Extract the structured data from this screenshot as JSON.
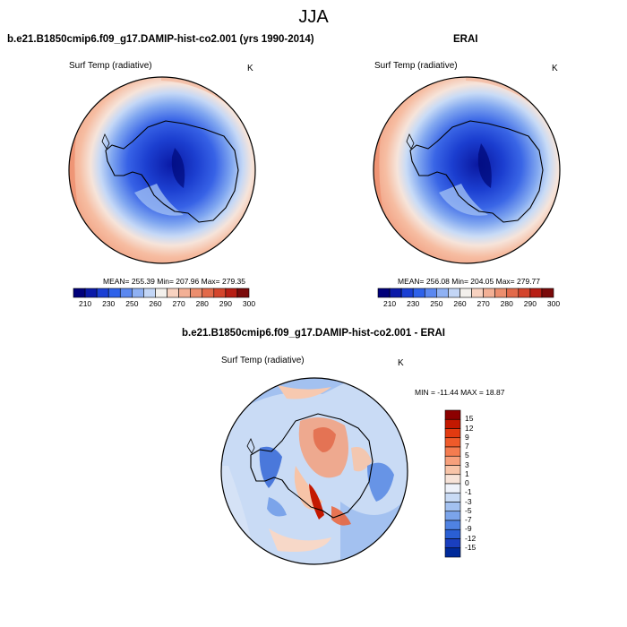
{
  "season_title": "JJA",
  "panels": {
    "model": {
      "title": "b.e21.B1850cmip6.f09_g17.DAMIP-hist-co2.001 (yrs 1990-2014)",
      "variable": "Surf Temp (radiative)",
      "units": "K",
      "stats": "MEAN= 255.39  Min= 207.96  Max= 279.35"
    },
    "obs": {
      "title": "ERAI",
      "variable": "Surf Temp (radiative)",
      "units": "K",
      "stats": "MEAN= 256.08  Min= 204.05  Max= 279.77"
    },
    "diff": {
      "title": "b.e21.B1850cmip6.f09_g17.DAMIP-hist-co2.001 - ERAI",
      "variable": "Surf Temp (radiative)",
      "units": "K",
      "stats": "MIN = -11.44 MAX =  18.87"
    }
  },
  "colorbars": {
    "absolute": {
      "labels": [
        "210",
        "230",
        "250",
        "260",
        "270",
        "280",
        "290",
        "300"
      ],
      "colors": [
        "#00007a",
        "#0a19a8",
        "#1a3fd4",
        "#2e62ea",
        "#5b88f0",
        "#8fb1f3",
        "#c3d6f6",
        "#f3f0ec",
        "#f8d2c0",
        "#f3b095",
        "#ec8e6e",
        "#e26a4a",
        "#d4452c",
        "#b71e14",
        "#7a0a0a"
      ]
    },
    "difference": {
      "labels": [
        "15",
        "12",
        "9",
        "7",
        "5",
        "3",
        "1",
        "0",
        "-1",
        "-3",
        "-5",
        "-7",
        "-9",
        "-12",
        "-15"
      ],
      "colors": [
        "#8c0000",
        "#c31800",
        "#e23a10",
        "#ef5a2a",
        "#f47c50",
        "#f7a07c",
        "#f8c4a8",
        "#f7e3d8",
        "#eef2fa",
        "#c9dbf5",
        "#a3c1f0",
        "#7ba4ea",
        "#4f82e2",
        "#2a5fd4",
        "#1a3fbf",
        "#002a9a"
      ]
    }
  }
}
